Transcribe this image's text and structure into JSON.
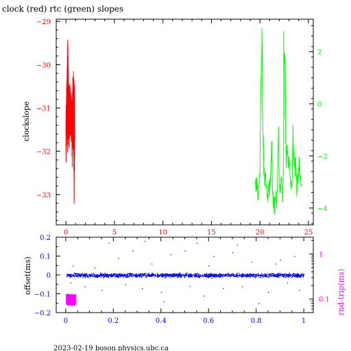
{
  "chart_data": [
    {
      "type": "line",
      "title": "clock (red) rtc (green) slopes",
      "xlabel": "",
      "ylabel": "clockslope",
      "ylabel_right": "",
      "xlim": [
        -1,
        25.5
      ],
      "xticks": [
        0,
        5,
        10,
        15,
        20,
        25
      ],
      "ylim": [
        -33.7,
        -28.95
      ],
      "yticks": [
        -33,
        -32,
        -31,
        -30,
        -29
      ],
      "ylim_right": [
        -4.65,
        3.25
      ],
      "yticks_right": [
        -4,
        -2,
        0,
        2
      ],
      "grid": false,
      "legend": "none",
      "series": [
        {
          "color": "#ff0000",
          "axis": "left",
          "x_range": [
            0,
            0.9
          ],
          "envelope": [
            [
              0.0,
              -31.2,
              -32.5
            ],
            [
              0.05,
              -30.6,
              -31.9
            ],
            [
              0.1,
              -30.3,
              -31.6
            ],
            [
              0.15,
              -29.6,
              -32.2
            ],
            [
              0.2,
              -29.2,
              -31.5
            ],
            [
              0.25,
              -30.0,
              -31.8
            ],
            [
              0.3,
              -30.5,
              -32.1
            ],
            [
              0.4,
              -30.4,
              -31.6
            ],
            [
              0.5,
              -30.6,
              -31.7
            ],
            [
              0.6,
              -30.8,
              -31.9
            ],
            [
              0.65,
              -30.9,
              -32.4
            ],
            [
              0.7,
              -30.3,
              -31.8
            ],
            [
              0.8,
              -30.0,
              -32.3
            ],
            [
              0.85,
              -30.5,
              -33.5
            ],
            [
              0.9,
              -30.4,
              -31.8
            ]
          ]
        },
        {
          "color": "#00ff00",
          "axis": "right",
          "x_values": [
            19.5,
            19.6,
            19.7,
            19.8,
            19.9,
            20.0,
            20.1,
            20.2,
            20.3,
            20.4,
            20.5,
            20.6,
            20.7,
            20.8,
            20.9,
            21.0,
            21.1,
            21.2,
            21.3,
            21.4,
            21.5,
            21.6,
            21.7,
            21.8,
            21.9,
            22.0,
            22.1,
            22.2,
            22.3,
            22.4,
            22.5,
            22.6,
            22.7,
            22.8,
            22.9,
            23.0,
            23.1,
            23.2,
            23.3,
            23.4,
            23.5,
            23.6,
            23.7,
            23.8,
            23.9,
            24.0,
            24.1,
            24.2,
            24.3
          ],
          "y_values": [
            -2.7,
            -3.2,
            -2.9,
            -3.6,
            -3.1,
            -2.5,
            1.0,
            2.5,
            -0.9,
            -2.4,
            -3.0,
            -2.9,
            -3.3,
            -3.6,
            -3.0,
            -3.4,
            -2.5,
            -1.6,
            -3.3,
            -3.7,
            -4.0,
            -3.6,
            -3.9,
            -3.1,
            -1.2,
            -3.0,
            -3.3,
            -2.8,
            -3.6,
            -3.2,
            2.2,
            1.7,
            -2.7,
            -1.5,
            -2.3,
            -2.0,
            -2.6,
            -3.4,
            -3.0,
            -1.3,
            -2.0,
            -2.6,
            -2.2,
            -3.3,
            -3.0,
            -2.5,
            -2.3,
            -2.8,
            -3.1
          ],
          "spikes": [
            [
              20.1,
              1.0
            ],
            [
              20.2,
              2.9
            ],
            [
              20.35,
              -1.2
            ],
            [
              21.2,
              -1.6
            ],
            [
              21.9,
              -1.0
            ],
            [
              22.45,
              2.8
            ],
            [
              22.55,
              2.0
            ],
            [
              22.65,
              -1.5
            ],
            [
              23.4,
              -0.8
            ]
          ]
        }
      ]
    },
    {
      "type": "scatter",
      "xlabel": "",
      "ylabel": "offset(ms)",
      "ylabel_right": "rnd-trip(ms)",
      "xlim": [
        -0.04,
        1.04
      ],
      "xticks": [
        0,
        0.2,
        0.4,
        0.6,
        0.8,
        1
      ],
      "xtick_labels": [
        "0",
        "0.2",
        "0.4",
        "0.6",
        "0.8",
        "1"
      ],
      "ylim": [
        -0.2,
        0.2
      ],
      "yticks": [
        -0.2,
        -0.1,
        0,
        0.1,
        0.2
      ],
      "ytick_labels": [
        "−0.2",
        "−0.1",
        "0",
        "0.1",
        "0.2"
      ],
      "yscale_right": "log",
      "ylim_right": [
        0.05,
        2.35
      ],
      "yticks_right": [
        0.1,
        1
      ],
      "ytick_labels_right": [
        "0.1",
        "1"
      ],
      "grid": false,
      "legend": "none",
      "series": [
        {
          "color": "#0000ff",
          "axis": "left",
          "x_range": [
            0,
            1
          ],
          "center": 0,
          "band_halfwidth": 0.015,
          "sample_points": [
            [
              0.02,
              -0.04
            ],
            [
              0.03,
              0.05
            ],
            [
              0.08,
              -0.06
            ],
            [
              0.12,
              0.04
            ],
            [
              0.15,
              -0.08
            ],
            [
              0.18,
              0.17
            ],
            [
              0.22,
              0.09
            ],
            [
              0.25,
              -0.05
            ],
            [
              0.28,
              0.13
            ],
            [
              0.32,
              -0.07
            ],
            [
              0.33,
              0.18
            ],
            [
              0.36,
              0.06
            ],
            [
              0.4,
              -0.09
            ],
            [
              0.41,
              -0.14
            ],
            [
              0.44,
              0.11
            ],
            [
              0.5,
              0.13
            ],
            [
              0.52,
              -0.06
            ],
            [
              0.55,
              0.17
            ],
            [
              0.58,
              -0.11
            ],
            [
              0.6,
              0.05
            ],
            [
              0.62,
              0.1
            ],
            [
              0.66,
              -0.07
            ],
            [
              0.7,
              0.12
            ],
            [
              0.72,
              0.16
            ],
            [
              0.74,
              -0.06
            ],
            [
              0.78,
              0.07
            ],
            [
              0.81,
              -0.15
            ],
            [
              0.85,
              -0.09
            ],
            [
              0.88,
              0.06
            ],
            [
              0.9,
              0.08
            ],
            [
              0.93,
              -0.04
            ],
            [
              0.96,
              0.1
            ],
            [
              0.98,
              -0.08
            ]
          ]
        },
        {
          "color": "#ff00ff",
          "axis": "right",
          "x_range": [
            0,
            0.04
          ],
          "y_range": [
            0.075,
            0.13
          ]
        }
      ]
    }
  ],
  "footer": "2023-02-19 boson.physics.ubc.ca"
}
